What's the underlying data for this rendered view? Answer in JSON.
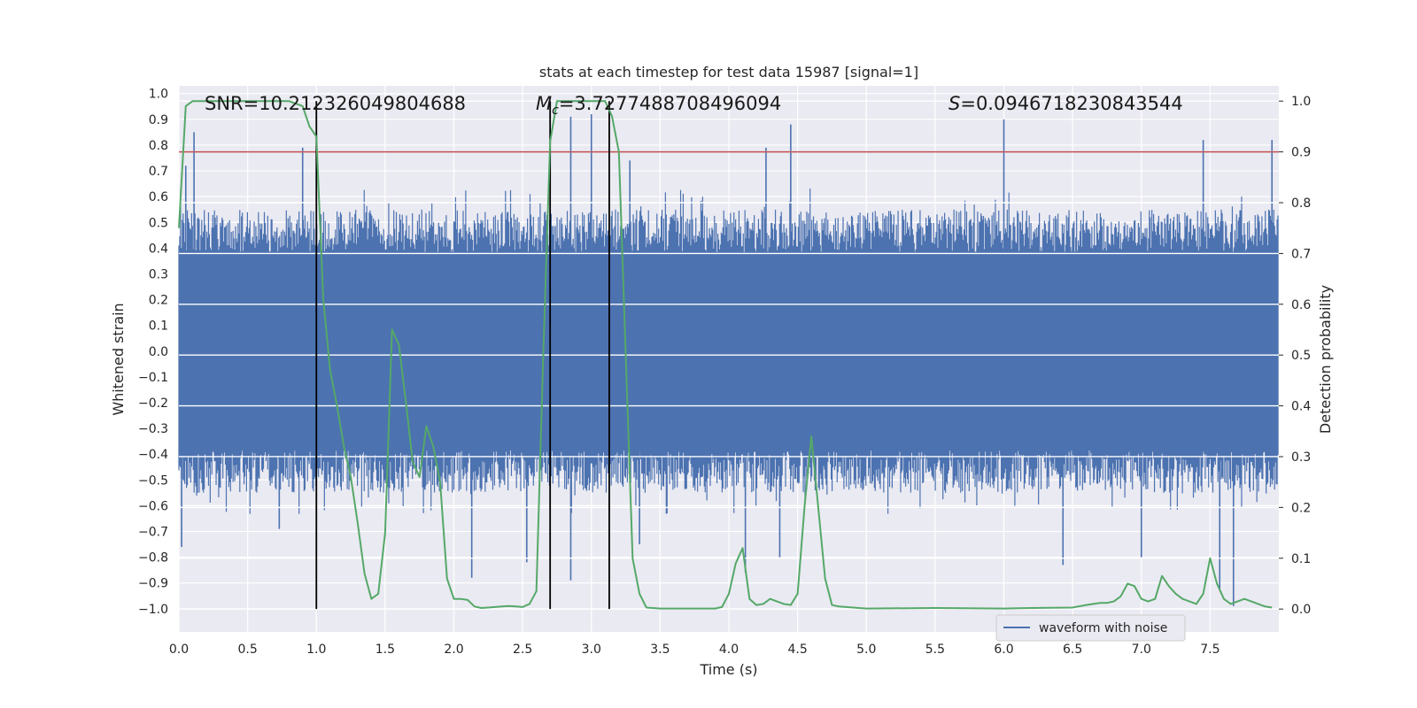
{
  "chart_data": {
    "type": "line",
    "title": "stats at each timestep for test data 15987 [signal=1]",
    "xlabel": "Time (s)",
    "ylabel_left": "Whitened strain",
    "ylabel_right": "Detection probability",
    "xlim": [
      0.0,
      8.0
    ],
    "ylim_left": [
      -1.09,
      1.03
    ],
    "ylim_right": [
      -0.045,
      1.03
    ],
    "x_ticks": [
      0.0,
      0.5,
      1.0,
      1.5,
      2.0,
      2.5,
      3.0,
      3.5,
      4.0,
      4.5,
      5.0,
      5.5,
      6.0,
      6.5,
      7.0,
      7.5
    ],
    "x_tick_labels": [
      "0.0",
      "0.5",
      "1.0",
      "1.5",
      "2.0",
      "2.5",
      "3.0",
      "3.5",
      "4.0",
      "4.5",
      "5.0",
      "5.5",
      "6.0",
      "6.5",
      "7.0",
      "7.5"
    ],
    "y_left_ticks": [
      1.0,
      0.9,
      0.8,
      0.7,
      0.6,
      0.5,
      0.4,
      0.3,
      0.2,
      0.1,
      0.0,
      -0.1,
      -0.2,
      -0.3,
      -0.4,
      -0.5,
      -0.6,
      -0.7,
      -0.8,
      -0.9,
      -1.0
    ],
    "y_left_tick_labels": [
      "1.0",
      "0.9",
      "0.8",
      "0.7",
      "0.6",
      "0.5",
      "0.4",
      "0.3",
      "0.2",
      "0.1",
      "0.0",
      "−0.1",
      "−0.2",
      "−0.3",
      "−0.4",
      "−0.5",
      "−0.6",
      "−0.7",
      "−0.8",
      "−0.9",
      "−1.0"
    ],
    "y_right_ticks": [
      1.0,
      0.9,
      0.8,
      0.7,
      0.6,
      0.5,
      0.4,
      0.3,
      0.2,
      0.1,
      0.0
    ],
    "y_right_tick_labels": [
      "1.0",
      "0.9",
      "0.8",
      "0.7",
      "0.6",
      "0.5",
      "0.4",
      "0.3",
      "0.2",
      "0.1",
      "0.0"
    ],
    "annotations": {
      "snr": "SNR=10.212326049804688",
      "mc_symbol": "M",
      "mc_sub": "c",
      "mc_value": "=3.7277488708496094",
      "s_symbol": "S",
      "s_value": "=0.0946718230843544"
    },
    "legend": {
      "label": "waveform with noise",
      "location": "lower-right"
    },
    "threshold": {
      "value": 0.9,
      "axis": "right",
      "color": "#c44e52"
    },
    "vlines_s": [
      1.0,
      2.7,
      3.13
    ],
    "waveform": {
      "name": "waveform with noise",
      "color": "#4c72b0",
      "t_range": [
        0.0,
        8.0
      ],
      "samples": 1300,
      "typical_upper": 0.52,
      "typical_lower": -0.52,
      "peaks_upper": [
        [
          0.05,
          0.72
        ],
        [
          0.11,
          0.85
        ],
        [
          0.9,
          0.79
        ],
        [
          2.85,
          0.91
        ],
        [
          3.0,
          0.92
        ],
        [
          3.28,
          0.74
        ],
        [
          4.27,
          0.79
        ],
        [
          4.45,
          0.88
        ],
        [
          6.0,
          0.9
        ],
        [
          7.45,
          0.82
        ],
        [
          7.95,
          0.82
        ]
      ],
      "peaks_lower": [
        [
          0.02,
          -0.76
        ],
        [
          0.73,
          -0.69
        ],
        [
          2.13,
          -0.88
        ],
        [
          2.53,
          -0.82
        ],
        [
          2.85,
          -0.89
        ],
        [
          3.35,
          -0.75
        ],
        [
          4.12,
          -0.86
        ],
        [
          4.37,
          -0.8
        ],
        [
          6.43,
          -0.83
        ],
        [
          7.0,
          -0.8
        ],
        [
          7.57,
          -0.93
        ],
        [
          7.67,
          -0.99
        ]
      ]
    },
    "detection_probability": {
      "name": "detection probability",
      "color": "#55a868",
      "axis": "right",
      "t": [
        0.0,
        0.05,
        0.1,
        0.2,
        0.4,
        0.6,
        0.8,
        0.9,
        0.95,
        1.0,
        1.05,
        1.1,
        1.15,
        1.2,
        1.25,
        1.3,
        1.35,
        1.4,
        1.45,
        1.5,
        1.55,
        1.6,
        1.65,
        1.7,
        1.75,
        1.8,
        1.85,
        1.9,
        1.95,
        2.0,
        2.05,
        2.1,
        2.15,
        2.2,
        2.25,
        2.3,
        2.35,
        2.4,
        2.45,
        2.5,
        2.55,
        2.6,
        2.65,
        2.7,
        2.75,
        2.8,
        2.9,
        3.0,
        3.1,
        3.15,
        3.2,
        3.25,
        3.3,
        3.35,
        3.4,
        3.5,
        3.7,
        3.9,
        3.95,
        4.0,
        4.05,
        4.1,
        4.15,
        4.2,
        4.25,
        4.3,
        4.35,
        4.4,
        4.45,
        4.5,
        4.55,
        4.6,
        4.65,
        4.7,
        4.75,
        4.8,
        5.0,
        5.5,
        6.0,
        6.2,
        6.5,
        6.6,
        6.7,
        6.75,
        6.8,
        6.85,
        6.9,
        6.95,
        7.0,
        7.05,
        7.1,
        7.15,
        7.2,
        7.25,
        7.3,
        7.35,
        7.4,
        7.45,
        7.5,
        7.55,
        7.6,
        7.65,
        7.7,
        7.75,
        7.8,
        7.85,
        7.9,
        7.95
      ],
      "p": [
        0.75,
        0.99,
        1.0,
        1.0,
        1.0,
        1.0,
        1.0,
        0.99,
        0.95,
        0.93,
        0.61,
        0.47,
        0.4,
        0.32,
        0.26,
        0.17,
        0.07,
        0.02,
        0.03,
        0.15,
        0.55,
        0.52,
        0.41,
        0.29,
        0.26,
        0.36,
        0.32,
        0.25,
        0.06,
        0.02,
        0.02,
        0.018,
        0.005,
        0.002,
        0.003,
        0.004,
        0.005,
        0.006,
        0.005,
        0.004,
        0.01,
        0.035,
        0.5,
        0.92,
        1.0,
        1.0,
        1.0,
        1.0,
        1.0,
        0.97,
        0.9,
        0.5,
        0.1,
        0.03,
        0.003,
        0.001,
        0.001,
        0.001,
        0.004,
        0.03,
        0.09,
        0.12,
        0.02,
        0.008,
        0.01,
        0.02,
        0.015,
        0.01,
        0.008,
        0.03,
        0.2,
        0.34,
        0.2,
        0.06,
        0.008,
        0.005,
        0.001,
        0.002,
        0.001,
        0.002,
        0.003,
        0.008,
        0.012,
        0.012,
        0.015,
        0.025,
        0.05,
        0.045,
        0.02,
        0.015,
        0.02,
        0.065,
        0.045,
        0.03,
        0.02,
        0.015,
        0.01,
        0.03,
        0.1,
        0.05,
        0.02,
        0.01,
        0.015,
        0.02,
        0.015,
        0.01,
        0.005,
        0.003
      ]
    }
  }
}
